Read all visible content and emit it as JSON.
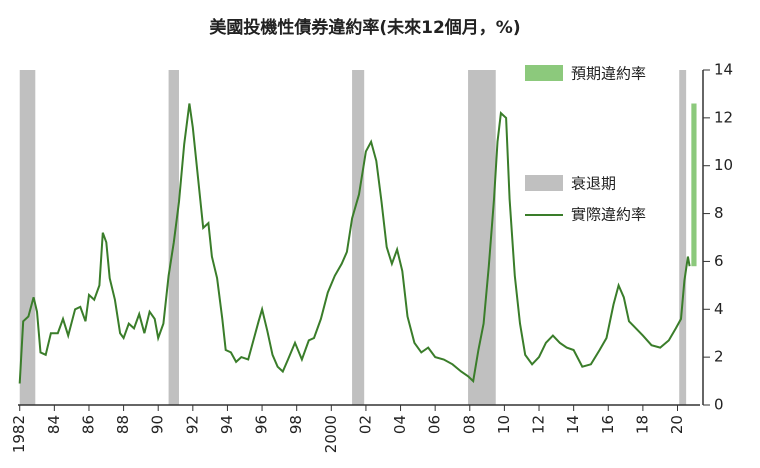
{
  "chart_data": {
    "type": "line",
    "title": "美國投機性債券違約率(未來12個月，%)",
    "xlim": [
      1981.9,
      2021.3
    ],
    "xticks": [
      1982,
      {
        "value": 1984,
        "label": "84"
      },
      {
        "value": 1986,
        "label": "86"
      },
      {
        "value": 1988,
        "label": "88"
      },
      {
        "value": 1990,
        "label": "90"
      },
      {
        "value": 1992,
        "label": "92"
      },
      {
        "value": 1994,
        "label": "94"
      },
      {
        "value": 1996,
        "label": "96"
      },
      {
        "value": 1998,
        "label": "98"
      },
      2000,
      {
        "value": 2002,
        "label": "02"
      },
      {
        "value": 2004,
        "label": "04"
      },
      {
        "value": 2006,
        "label": "06"
      },
      {
        "value": 2008,
        "label": "08"
      },
      {
        "value": 2010,
        "label": "10"
      },
      {
        "value": 2012,
        "label": "12"
      },
      {
        "value": 2014,
        "label": "14"
      },
      {
        "value": 2016,
        "label": "16"
      },
      {
        "value": 2018,
        "label": "18"
      },
      {
        "value": 2020,
        "label": "20"
      }
    ],
    "ylim": [
      0,
      14
    ],
    "yticks": [
      0,
      2,
      4,
      6,
      8,
      10,
      12,
      14
    ],
    "recessions": {
      "name": "衰退期",
      "color": "#c0c0c0",
      "ranges": [
        [
          1982.0,
          1982.9
        ],
        [
          1990.6,
          1991.2
        ],
        [
          2001.2,
          2001.9
        ],
        [
          2007.9,
          2009.5
        ],
        [
          2020.1,
          2020.5
        ]
      ]
    },
    "forecast": {
      "name": "預期違約率",
      "color": "#8cc97c",
      "x": [
        2020.8,
        2021.1
      ],
      "low": 5.8,
      "high": 12.6
    },
    "legend": "right",
    "series": [
      {
        "name": "實際違約率",
        "color": "#3a7d2a",
        "x": [
          1982.0,
          1982.2,
          1982.5,
          1982.8,
          1983.0,
          1983.2,
          1983.5,
          1983.8,
          1984.2,
          1984.5,
          1984.8,
          1985.2,
          1985.5,
          1985.8,
          1986.0,
          1986.3,
          1986.6,
          1986.8,
          1987.0,
          1987.2,
          1987.5,
          1987.8,
          1988.0,
          1988.3,
          1988.6,
          1988.9,
          1989.2,
          1989.5,
          1989.8,
          1990.0,
          1990.3,
          1990.6,
          1990.9,
          1991.2,
          1991.5,
          1991.8,
          1992.0,
          1992.3,
          1992.6,
          1992.9,
          1993.1,
          1993.4,
          1993.7,
          1993.9,
          1994.2,
          1994.5,
          1994.8,
          1995.2,
          1995.5,
          1995.8,
          1996.0,
          1996.3,
          1996.6,
          1996.9,
          1997.2,
          1997.5,
          1997.9,
          1998.3,
          1998.7,
          1999.0,
          1999.4,
          1999.8,
          2000.2,
          2000.6,
          2000.9,
          2001.2,
          2001.6,
          2002.0,
          2002.3,
          2002.6,
          2002.9,
          2003.2,
          2003.5,
          2003.8,
          2004.1,
          2004.4,
          2004.8,
          2005.2,
          2005.6,
          2006.0,
          2006.5,
          2007.0,
          2007.5,
          2007.9,
          2008.2,
          2008.5,
          2008.8,
          2009.1,
          2009.4,
          2009.6,
          2009.8,
          2010.1,
          2010.3,
          2010.6,
          2010.9,
          2011.2,
          2011.6,
          2012.0,
          2012.4,
          2012.8,
          2013.2,
          2013.6,
          2014.0,
          2014.5,
          2015.0,
          2015.5,
          2015.9,
          2016.3,
          2016.6,
          2016.9,
          2017.2,
          2017.6,
          2018.0,
          2018.5,
          2019.0,
          2019.5,
          2019.9,
          2020.2,
          2020.4,
          2020.6,
          2020.7
        ],
        "values": [
          0.9,
          3.5,
          3.7,
          4.5,
          3.9,
          2.2,
          2.1,
          3.0,
          3.0,
          3.6,
          2.9,
          4.0,
          4.1,
          3.5,
          4.6,
          4.4,
          5.0,
          7.2,
          6.8,
          5.3,
          4.4,
          3.0,
          2.8,
          3.4,
          3.2,
          3.8,
          3.0,
          3.9,
          3.6,
          2.8,
          3.4,
          5.4,
          6.8,
          8.5,
          10.9,
          12.6,
          11.6,
          9.5,
          7.4,
          7.6,
          6.2,
          5.3,
          3.6,
          2.3,
          2.2,
          1.8,
          2.0,
          1.9,
          2.7,
          3.5,
          4.0,
          3.1,
          2.1,
          1.6,
          1.4,
          1.9,
          2.6,
          1.9,
          2.7,
          2.8,
          3.6,
          4.7,
          5.4,
          5.9,
          6.4,
          7.8,
          8.8,
          10.6,
          11.0,
          10.2,
          8.5,
          6.6,
          5.9,
          6.5,
          5.6,
          3.7,
          2.6,
          2.2,
          2.4,
          2.0,
          1.9,
          1.7,
          1.4,
          1.2,
          1.0,
          2.3,
          3.4,
          5.8,
          8.6,
          11.0,
          12.2,
          12.0,
          8.6,
          5.4,
          3.4,
          2.1,
          1.7,
          2.0,
          2.6,
          2.9,
          2.6,
          2.4,
          2.3,
          1.6,
          1.7,
          2.3,
          2.8,
          4.2,
          5.0,
          4.5,
          3.5,
          3.2,
          2.9,
          2.5,
          2.4,
          2.7,
          3.2,
          3.6,
          5.2,
          6.2,
          5.8
        ]
      }
    ]
  }
}
